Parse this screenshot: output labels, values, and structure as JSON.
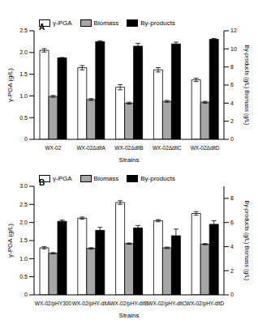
{
  "chart_data": [
    {
      "type": "bar",
      "title": "A",
      "x_label": "Strains",
      "y_label": "γ-PGA (g/L)",
      "y2_label": "By-products (g/L) Biomass (g/L)",
      "categories": [
        "WX-02",
        "WX-02ΔdltA",
        "WX-02ΔdltB",
        "WX-02ΔdltC",
        "WX-02ΔdltD"
      ],
      "series": [
        {
          "name": "γ-PGA",
          "color": "#ffffff",
          "values": [
            2.05,
            1.65,
            1.2,
            1.6,
            1.37
          ],
          "errors": [
            0.04,
            0.05,
            0.06,
            0.05,
            0.04
          ]
        },
        {
          "name": "Biomass",
          "color": "#a6a6a6",
          "axis": "y2",
          "values": [
            4.75,
            4.4,
            4.0,
            4.2,
            4.1
          ],
          "errors": [
            0.1,
            0.1,
            0.1,
            0.1,
            0.1
          ]
        },
        {
          "name": "By-products",
          "color": "#000000",
          "axis": "y2",
          "values": [
            9.0,
            10.8,
            10.3,
            10.55,
            11.05
          ],
          "errors": [
            0.05,
            0.1,
            0.3,
            0.2,
            0.1
          ]
        }
      ],
      "ylim": [
        0,
        2.5
      ],
      "yticks": [
        0,
        0.5,
        {
          "value": 1,
          "label": "1.0"
        },
        1.5,
        {
          "value": 2,
          "label": "2.0"
        },
        2.5
      ],
      "y2lim": [
        0,
        12
      ],
      "y2ticks": [
        0,
        2,
        4,
        6,
        8,
        10,
        12
      ],
      "legend": "upper left"
    },
    {
      "type": "bar",
      "title": "B",
      "x_label": "Strains",
      "y_label": "γ-PGA (g/L)",
      "y2_label": "By-products (g/L) Biomass (g/L)",
      "categories": [
        "WX-02/pHY300",
        "WX-02/pHY-dltA",
        "WX-02/pHY-dltB",
        "WX-02/pHY-dltC",
        "WX-02/pHY-dltD"
      ],
      "series": [
        {
          "name": "γ-PGA",
          "color": "#ffffff",
          "values": [
            1.3,
            2.12,
            2.55,
            2.05,
            2.25
          ],
          "errors": [
            0.03,
            0.03,
            0.05,
            0.03,
            0.05
          ]
        },
        {
          "name": "Biomass",
          "color": "#a6a6a6",
          "axis": "y2",
          "values": [
            3.45,
            3.85,
            4.25,
            3.9,
            4.2
          ],
          "errors": [
            0.05,
            0.06,
            0.05,
            0.06,
            0.05
          ]
        },
        {
          "name": "By-products",
          "color": "#000000",
          "axis": "y2",
          "values": [
            6.1,
            5.35,
            5.55,
            4.9,
            5.85
          ],
          "errors": [
            0.1,
            0.25,
            0.2,
            0.55,
            0.3
          ]
        }
      ],
      "ylim": [
        0,
        3
      ],
      "yticks": [
        0,
        0.5,
        {
          "value": 1,
          "label": "1.0"
        },
        1.5,
        {
          "value": 2,
          "label": "2.0"
        },
        2.5,
        {
          "value": 3,
          "label": "3.0"
        }
      ],
      "y2lim": [
        0,
        9
      ],
      "y2ticks": [
        0,
        2,
        4,
        6,
        8
      ],
      "legend": "upper left"
    }
  ]
}
